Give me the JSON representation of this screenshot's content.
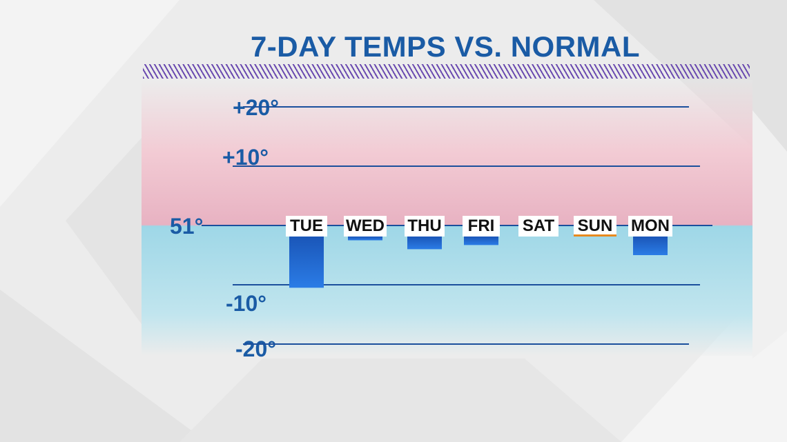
{
  "chart_data": {
    "type": "bar",
    "title": "7-DAY TEMPS VS. NORMAL",
    "baseline_label": "51°",
    "categories": [
      "TUE",
      "WED",
      "THU",
      "FRI",
      "SAT",
      "SUN",
      "MON"
    ],
    "values": [
      -10.5,
      -2.5,
      -4,
      -3.3,
      -1.7,
      0,
      -5
    ],
    "y_ticks": [
      {
        "value": 20,
        "label": "+20°"
      },
      {
        "value": 10,
        "label": "+10°"
      },
      {
        "value": -10,
        "label": "-10°"
      },
      {
        "value": -20,
        "label": "-20°"
      }
    ],
    "ylim": [
      -20,
      20
    ],
    "grid": true,
    "colors": {
      "bar_top": "#1a56b8",
      "bar_bottom": "#2b7ce6",
      "line": "#1a4f9c",
      "text": "#1a5ba5",
      "above_normal_band": "#e8b2c2",
      "below_normal_band": "#9ed7e7",
      "sun_underline": "#e8891e"
    }
  }
}
